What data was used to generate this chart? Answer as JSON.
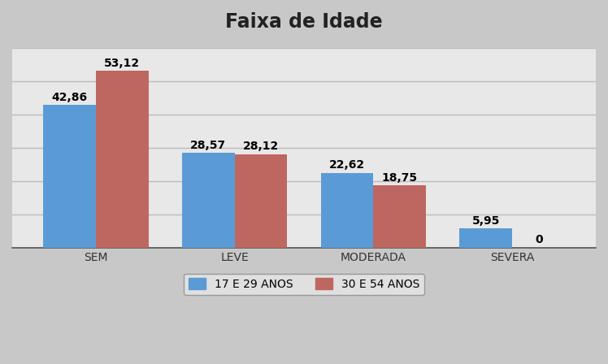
{
  "title": "Faixa de Idade",
  "categories": [
    "SEM",
    "LEVE",
    "MODERADA",
    "SEVERA"
  ],
  "series": [
    {
      "label": "17 E 29 ANOS",
      "values": [
        42.86,
        28.57,
        22.62,
        5.95
      ],
      "color": "#5B9BD5"
    },
    {
      "label": "30 E 54 ANOS",
      "values": [
        53.12,
        28.12,
        18.75,
        0
      ],
      "color": "#BE6660"
    }
  ],
  "ylim": [
    0,
    60
  ],
  "bar_width": 0.38,
  "fig_background": "#C8C8C8",
  "plot_background": "#E8E8E8",
  "title_fontsize": 17,
  "label_fontsize": 10,
  "tick_fontsize": 10,
  "legend_fontsize": 10,
  "grid_color": "#BBBBBB",
  "grid_yticks": [
    0,
    10,
    20,
    30,
    40,
    50,
    60
  ]
}
